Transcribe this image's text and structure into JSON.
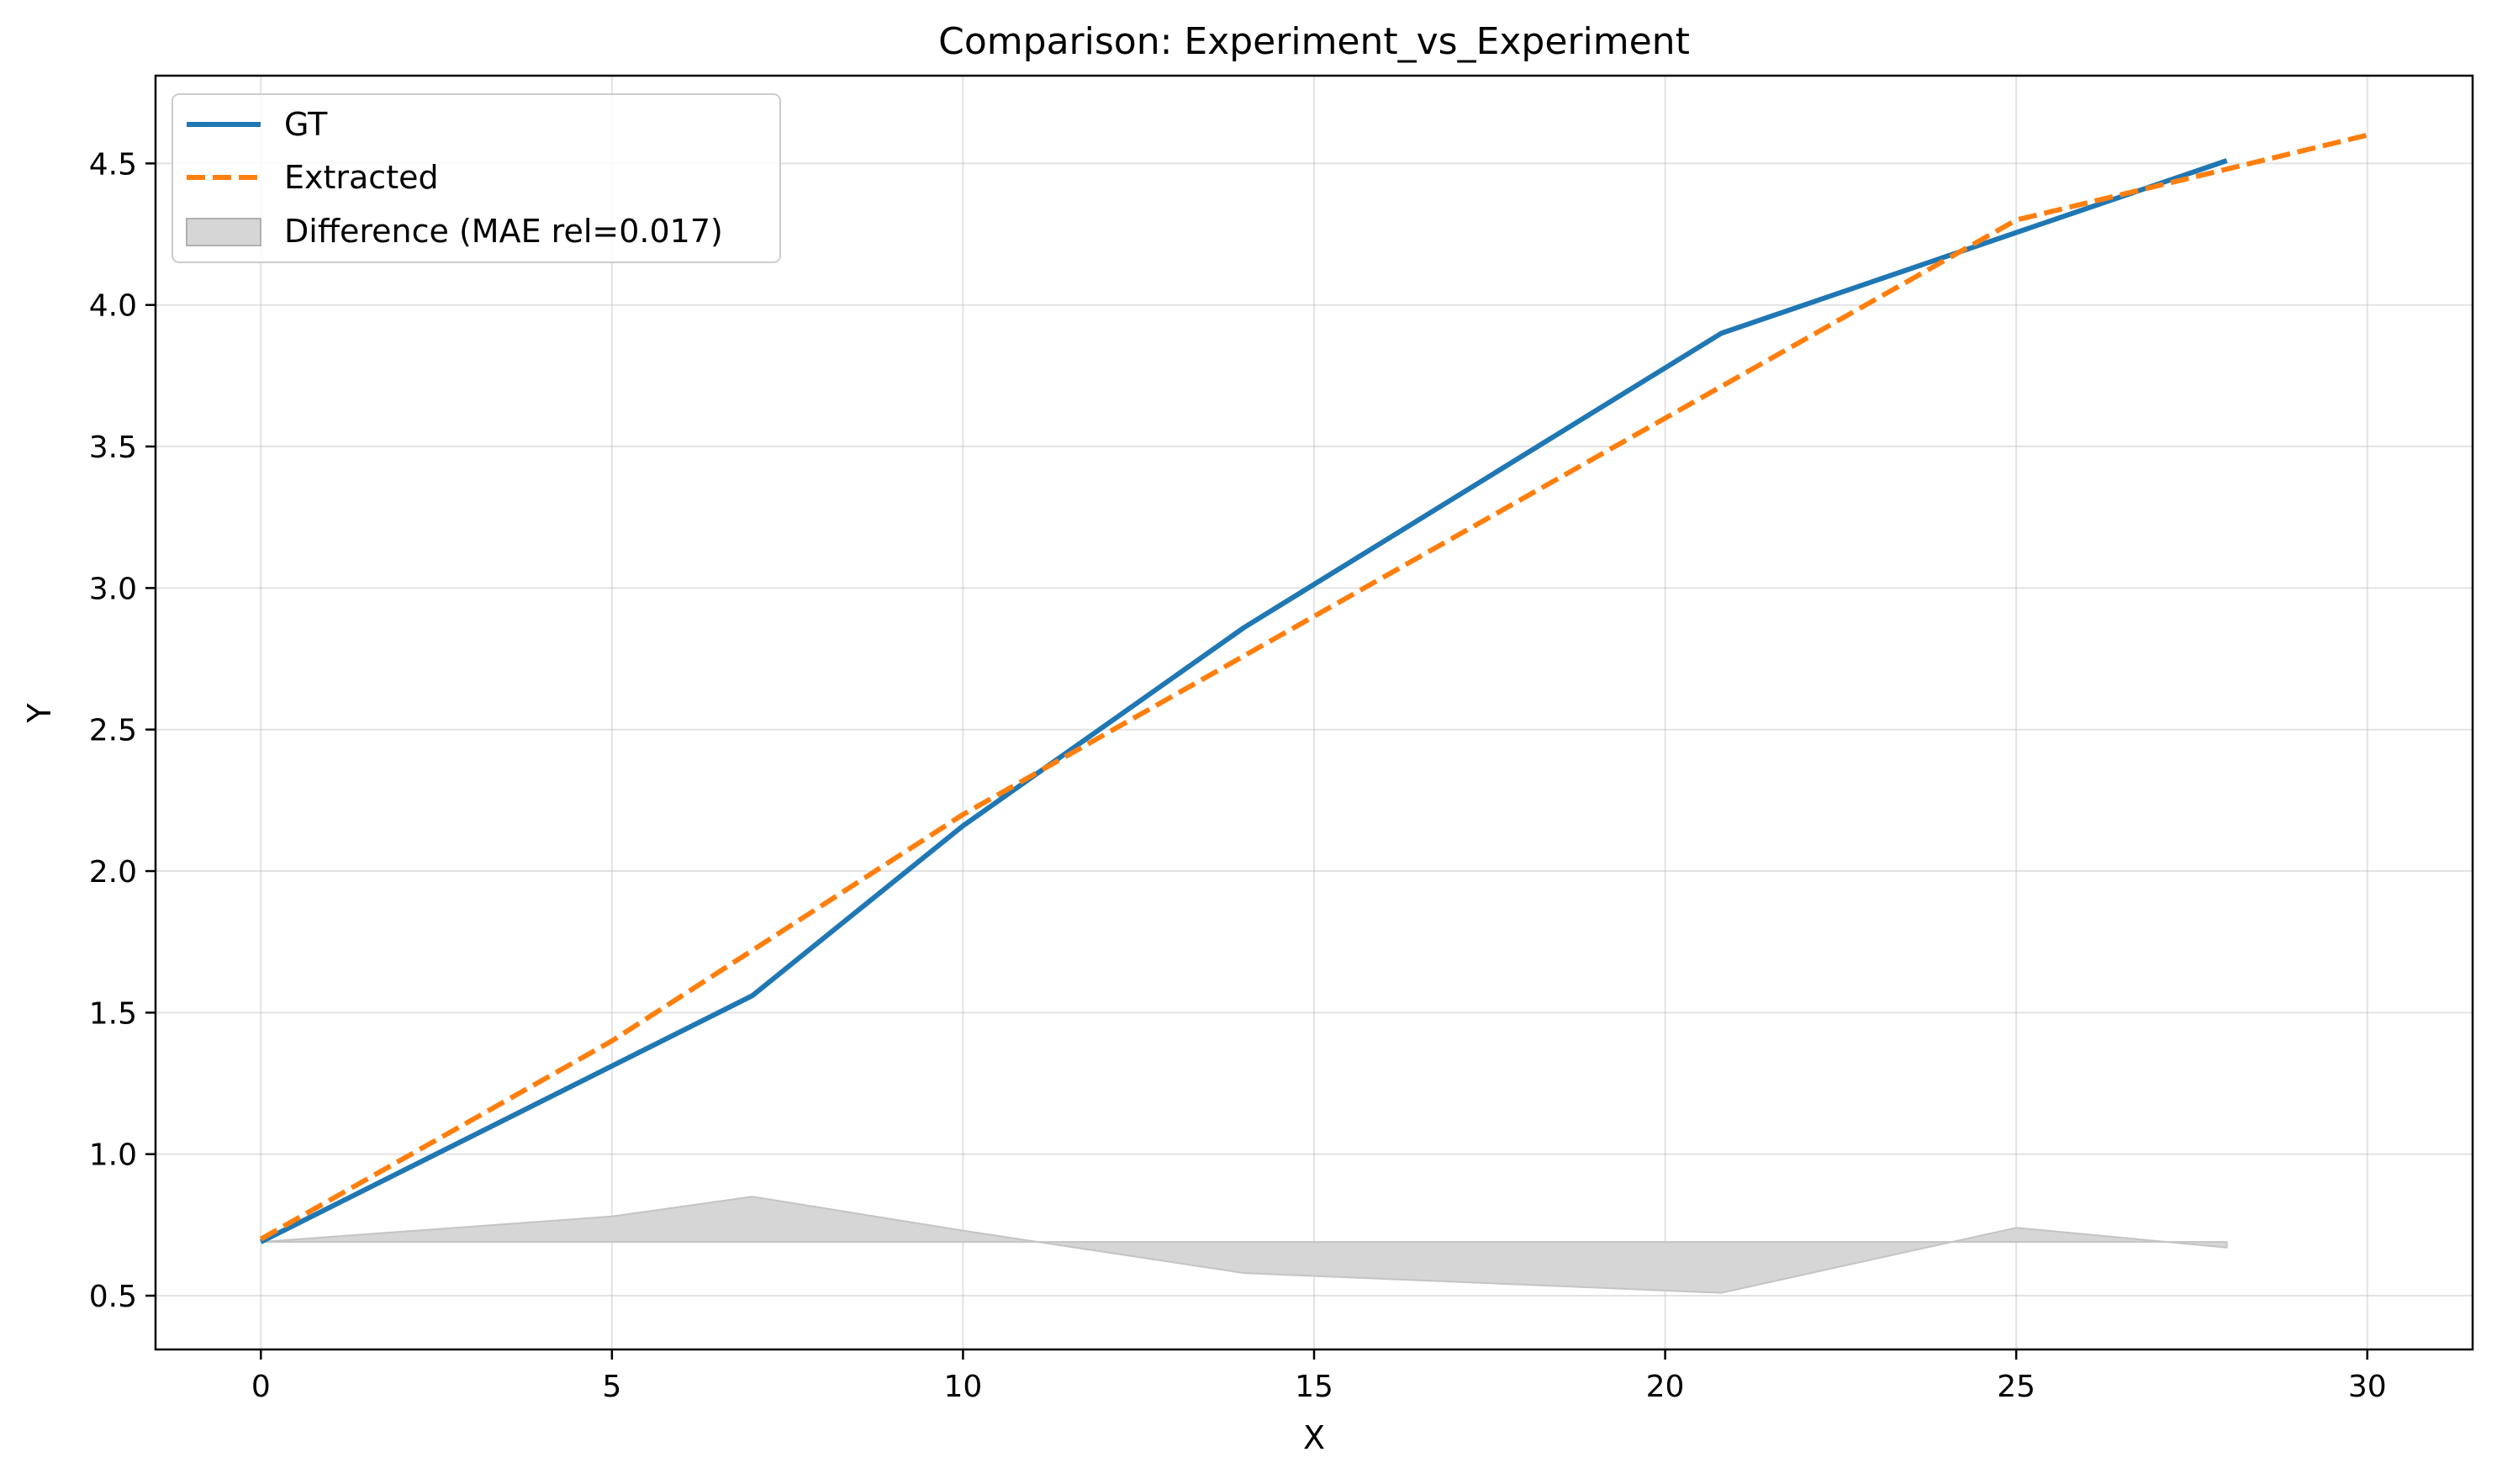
{
  "chart_data": {
    "type": "line",
    "title": "Comparison: Experiment_vs_Experiment",
    "xlabel": "X",
    "ylabel": "Y",
    "xlim": [
      -1.5,
      31.5
    ],
    "ylim": [
      0.31,
      4.81
    ],
    "x_ticks": [
      0,
      5,
      10,
      15,
      20,
      25,
      30
    ],
    "y_ticks": [
      0.5,
      1.0,
      1.5,
      2.0,
      2.5,
      3.0,
      3.5,
      4.0,
      4.5
    ],
    "x_tick_labels": [
      "0",
      "5",
      "10",
      "15",
      "20",
      "25",
      "30"
    ],
    "y_tick_labels": [
      "0.5",
      "1.0",
      "1.5",
      "2.0",
      "2.5",
      "3.0",
      "3.5",
      "4.0",
      "4.5"
    ],
    "grid": true,
    "legend_position": "top-left",
    "series": [
      {
        "name": "GT",
        "color": "#1f77b4",
        "style": "solid",
        "x": [
          0,
          7,
          10,
          14,
          20.8,
          28
        ],
        "y": [
          0.69,
          1.56,
          2.16,
          2.86,
          3.9,
          4.51
        ]
      },
      {
        "name": "Extracted",
        "color": "#ff7f0e",
        "style": "dashed",
        "x": [
          0,
          5,
          10,
          15,
          20,
          25,
          30
        ],
        "y": [
          0.7,
          1.4,
          2.2,
          2.9,
          3.6,
          4.3,
          4.6
        ]
      }
    ],
    "difference": {
      "name": "Difference (MAE rel=0.017)",
      "color": "#d6d6d6",
      "baseline": 0.69,
      "x": [
        0,
        5,
        7,
        10,
        14,
        20.8,
        25,
        28
      ],
      "y": [
        0.69,
        0.78,
        0.85,
        0.73,
        0.58,
        0.51,
        0.74,
        0.67
      ]
    }
  }
}
